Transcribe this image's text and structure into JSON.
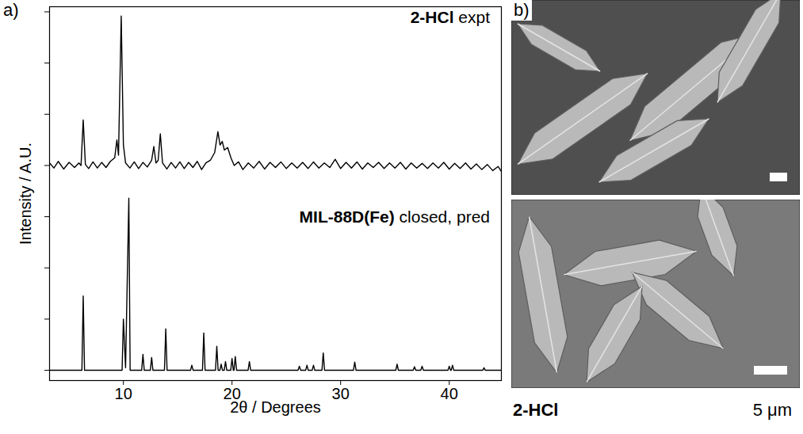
{
  "chart_data": {
    "type": "line",
    "panel_label": "a)",
    "xlabel": "2θ / Degrees",
    "ylabel": "Intensity / A.U.",
    "xlim": [
      3.2,
      44.8
    ],
    "xticks": [
      10,
      20,
      30,
      40
    ],
    "ylim": [
      -0.2,
      7.1
    ],
    "yticks": [
      0,
      1,
      2,
      3,
      4,
      5,
      6,
      7
    ],
    "tick_labels": "x",
    "grid": false,
    "series": [
      {
        "name": "2-HCl expt",
        "color": "#000000",
        "x": [
          3.2,
          3.6,
          4.0,
          4.5,
          5.0,
          5.5,
          5.9,
          6.1,
          6.3,
          6.5,
          6.8,
          7.2,
          7.6,
          8.0,
          8.4,
          8.8,
          9.2,
          9.4,
          9.55,
          9.8,
          10.0,
          10.2,
          10.6,
          11.0,
          11.4,
          11.8,
          12.2,
          12.6,
          12.8,
          13.0,
          13.2,
          13.4,
          13.6,
          14.0,
          14.4,
          14.8,
          15.2,
          15.6,
          16.0,
          16.4,
          16.8,
          17.2,
          17.6,
          18.0,
          18.4,
          18.7,
          18.9,
          19.1,
          19.3,
          19.6,
          19.9,
          20.2,
          20.6,
          21.0,
          21.5,
          22.0,
          22.5,
          23.0,
          23.5,
          24.0,
          24.5,
          25.0,
          25.5,
          26.0,
          26.5,
          27.0,
          27.5,
          28.0,
          28.5,
          29.0,
          29.5,
          30.0,
          30.5,
          31.0,
          31.5,
          32.0,
          32.5,
          33.0,
          33.5,
          34.0,
          34.5,
          35.0,
          35.5,
          36.0,
          36.5,
          37.0,
          37.5,
          38.0,
          38.5,
          39.0,
          39.5,
          40.0,
          40.5,
          41.0,
          41.5,
          42.0,
          42.5,
          43.0,
          43.5,
          44.0,
          44.5,
          44.8
        ],
        "values": [
          4.05,
          3.95,
          4.08,
          3.93,
          4.06,
          3.96,
          4.05,
          4.0,
          4.89,
          4.02,
          3.94,
          4.07,
          3.95,
          4.06,
          3.96,
          4.08,
          4.15,
          4.5,
          4.2,
          6.92,
          4.4,
          4.05,
          3.95,
          4.07,
          3.94,
          4.06,
          3.97,
          4.1,
          4.37,
          4.05,
          4.1,
          4.62,
          4.05,
          3.93,
          4.06,
          3.95,
          4.07,
          3.94,
          4.06,
          3.96,
          4.08,
          3.92,
          4.05,
          4.1,
          4.25,
          4.66,
          4.4,
          4.47,
          4.3,
          4.35,
          4.15,
          4.0,
          4.07,
          3.92,
          4.05,
          3.95,
          4.08,
          3.93,
          4.06,
          3.96,
          4.07,
          3.94,
          4.05,
          3.95,
          4.06,
          3.94,
          4.07,
          3.95,
          4.05,
          3.96,
          4.12,
          3.94,
          4.06,
          3.95,
          4.07,
          3.93,
          4.05,
          3.96,
          4.06,
          3.94,
          4.05,
          3.95,
          4.06,
          3.93,
          4.05,
          3.95,
          4.04,
          3.94,
          4.05,
          3.95,
          4.06,
          3.93,
          4.04,
          3.94,
          4.05,
          3.93,
          4.03,
          3.92,
          4.02,
          3.9,
          3.98,
          3.88
        ]
      },
      {
        "name": "MIL-88D(Fe) closed, pred",
        "color": "#000000",
        "x": [
          3.2,
          6.18,
          6.3,
          6.42,
          9.88,
          10.0,
          10.2,
          10.5,
          10.62,
          11.68,
          11.8,
          11.92,
          12.48,
          12.6,
          12.72,
          13.78,
          13.9,
          14.02,
          16.18,
          16.3,
          16.42,
          17.28,
          17.4,
          17.52,
          18.48,
          18.6,
          18.72,
          18.88,
          19.0,
          19.12,
          19.28,
          19.4,
          19.52,
          19.88,
          20.0,
          20.12,
          20.18,
          20.3,
          20.42,
          21.48,
          21.6,
          21.72,
          26.08,
          26.2,
          26.32,
          26.78,
          26.9,
          27.02,
          27.38,
          27.5,
          27.62,
          28.28,
          28.4,
          28.52,
          31.18,
          31.3,
          31.42,
          35.08,
          35.2,
          35.32,
          36.68,
          36.8,
          36.92,
          37.38,
          37.5,
          37.62,
          39.88,
          40.0,
          40.12,
          40.18,
          40.3,
          40.42,
          43.08,
          43.2,
          43.32,
          44.8
        ],
        "values": [
          0,
          0,
          1.45,
          0,
          0,
          1.0,
          0.05,
          3.36,
          0,
          0,
          0.31,
          0,
          0,
          0.25,
          0,
          0,
          0.81,
          0,
          0,
          0.1,
          0,
          0,
          0.73,
          0,
          0,
          0.47,
          0,
          0,
          0.12,
          0,
          0,
          0.17,
          0,
          0,
          0.23,
          0,
          0,
          0.27,
          0,
          0,
          0.17,
          0,
          0,
          0.08,
          0,
          0,
          0.1,
          0,
          0,
          0.1,
          0,
          0,
          0.34,
          0,
          0,
          0.16,
          0,
          0,
          0.12,
          0,
          0,
          0.07,
          0,
          0,
          0.08,
          0,
          0,
          0.08,
          0,
          0,
          0.1,
          0,
          0,
          0.05,
          0,
          0
        ]
      }
    ]
  },
  "panel_b": {
    "label": "b)",
    "caption": "2-HCl",
    "scale_bar": "5 μm"
  }
}
